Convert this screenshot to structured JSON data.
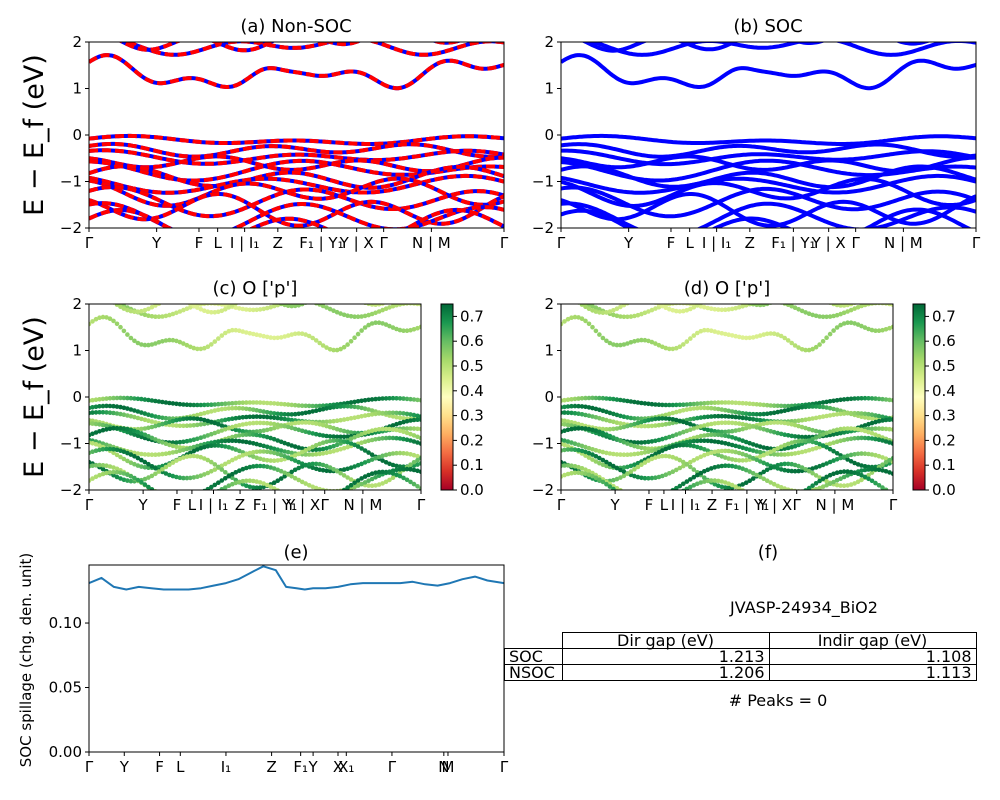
{
  "ylabel": "E − E_f (eV)",
  "colors": {
    "nonsoc_a": "#ff0000",
    "nonsoc_b": "#0000ff",
    "soc": "#0000ff",
    "spillage": "#1f77b4"
  },
  "colormap": "RdYlGn",
  "chart_data": [
    {
      "id": "a",
      "type": "line",
      "title": "(a) Non-SOC",
      "ylim": [
        -2,
        2
      ],
      "yticks": [
        -2,
        -1,
        0,
        1,
        2
      ],
      "xticks": [
        "Γ",
        "Y",
        "F",
        "L",
        "I | I₁",
        "Z",
        "F₁ | Y₁",
        "Y | X",
        "Γ",
        "N | M",
        "Γ"
      ],
      "series_style": "dashed red/blue (spin-up/spin-down)"
    },
    {
      "id": "b",
      "type": "line",
      "title": "(b) SOC",
      "ylim": [
        -2,
        2
      ],
      "yticks": [
        -2,
        -1,
        0,
        1,
        2
      ],
      "xticks": [
        "Γ",
        "Y",
        "F",
        "L",
        "I | I₁",
        "Z",
        "F₁ | Y₁",
        "Y | X",
        "Γ",
        "N | M",
        "Γ"
      ]
    },
    {
      "id": "c",
      "type": "scatter",
      "title": "(c)  O ['p']",
      "ylim": [
        -2,
        2
      ],
      "yticks": [
        -2,
        -1,
        0,
        1,
        2
      ],
      "xticks": [
        "Γ",
        "Y",
        "F",
        "L",
        "I | I₁",
        "Z",
        "F₁ | Y₁",
        "Y | X",
        "Γ",
        "N | M",
        "Γ"
      ],
      "colorbar": {
        "range": [
          0.0,
          0.75
        ],
        "ticks": [
          "0.0",
          "0.1",
          "0.2",
          "0.3",
          "0.4",
          "0.5",
          "0.6",
          "0.7"
        ]
      }
    },
    {
      "id": "d",
      "type": "scatter",
      "title": "(d) O ['p']",
      "ylim": [
        -2,
        2
      ],
      "yticks": [
        -2,
        -1,
        0,
        1,
        2
      ],
      "xticks": [
        "Γ",
        "Y",
        "F",
        "L",
        "I | I₁",
        "Z",
        "F₁ | Y₁",
        "Y | X",
        "Γ",
        "N | M",
        "Γ"
      ],
      "colorbar": {
        "range": [
          0.0,
          0.75
        ],
        "ticks": [
          "0.0",
          "0.1",
          "0.2",
          "0.3",
          "0.4",
          "0.5",
          "0.6",
          "0.7"
        ]
      }
    },
    {
      "id": "e",
      "type": "line",
      "title": "(e)",
      "ylabel": "SOC spillage (chg. den. unit)",
      "ylim": [
        0.0,
        0.145
      ],
      "yticks": [
        "0.00",
        "0.05",
        "0.10"
      ],
      "xticks": [
        "Γ",
        "Y",
        "F",
        "L",
        "I₁",
        "Z",
        "F₁",
        "Y",
        "X",
        "X₁",
        "Γ",
        "N",
        "M",
        "Γ"
      ],
      "x": [
        0.0,
        0.03,
        0.06,
        0.09,
        0.12,
        0.15,
        0.18,
        0.21,
        0.24,
        0.27,
        0.3,
        0.33,
        0.36,
        0.39,
        0.42,
        0.45,
        0.475,
        0.5,
        0.52,
        0.54,
        0.57,
        0.6,
        0.63,
        0.66,
        0.69,
        0.72,
        0.75,
        0.78,
        0.81,
        0.84,
        0.87,
        0.9,
        0.93,
        0.96,
        1.0
      ],
      "y": [
        0.131,
        0.135,
        0.128,
        0.126,
        0.128,
        0.127,
        0.126,
        0.126,
        0.126,
        0.127,
        0.129,
        0.131,
        0.134,
        0.139,
        0.144,
        0.141,
        0.128,
        0.127,
        0.126,
        0.127,
        0.127,
        0.128,
        0.13,
        0.131,
        0.131,
        0.131,
        0.131,
        0.132,
        0.13,
        0.129,
        0.131,
        0.134,
        0.136,
        0.133,
        0.131
      ]
    },
    {
      "id": "f",
      "type": "table",
      "title": "(f)",
      "material": "JVASP-24934_BiO2",
      "columns": [
        "Dir gap (eV)",
        "Indir gap (eV)"
      ],
      "rows": [
        {
          "label": "SOC",
          "dir": "1.213",
          "indir": "1.108"
        },
        {
          "label": "NSOC",
          "dir": "1.206",
          "indir": "1.113"
        }
      ],
      "peaks": "# Peaks = 0"
    }
  ]
}
